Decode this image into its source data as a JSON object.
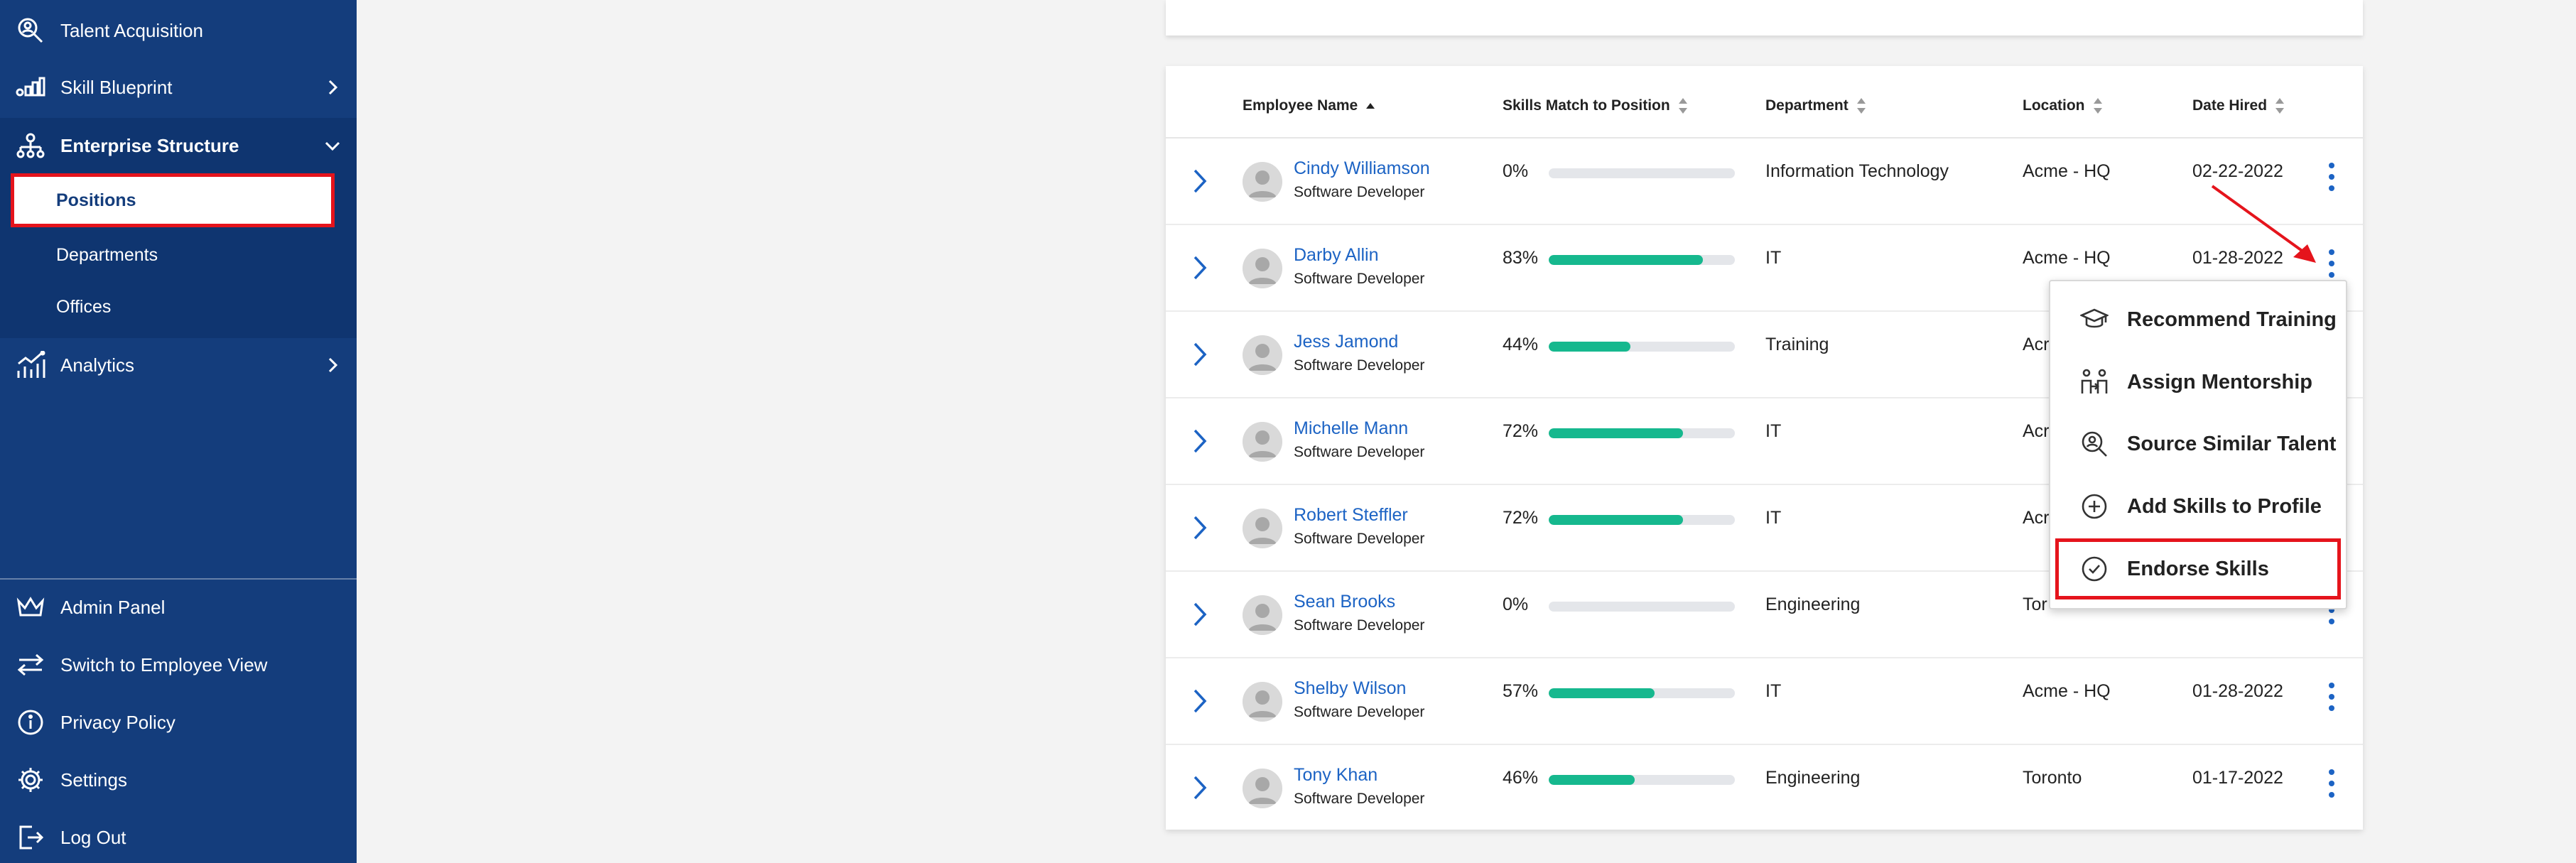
{
  "sidebar": {
    "items": [
      {
        "label": "Talent Acquisition",
        "icon": "search-person-icon"
      },
      {
        "label": "Skill Blueprint",
        "icon": "blueprint-icon"
      },
      {
        "label": "Enterprise Structure",
        "icon": "org-chart-icon"
      },
      {
        "label": "Analytics",
        "icon": "analytics-icon"
      }
    ],
    "sub_items": [
      {
        "label": "Positions"
      },
      {
        "label": "Departments"
      },
      {
        "label": "Offices"
      }
    ],
    "bottom_items": [
      {
        "label": "Admin Panel",
        "icon": "crown-icon"
      },
      {
        "label": "Switch to Employee View",
        "icon": "swap-arrows-icon"
      },
      {
        "label": "Privacy Policy",
        "icon": "info-icon"
      },
      {
        "label": "Settings",
        "icon": "gear-icon"
      },
      {
        "label": "Log Out",
        "icon": "logout-icon"
      }
    ]
  },
  "table": {
    "headers": {
      "name": "Employee Name",
      "skills": "Skills Match to Position",
      "department": "Department",
      "location": "Location",
      "date": "Date Hired"
    },
    "rows": [
      {
        "name": "Cindy Williamson",
        "role": "Software Developer",
        "pct_label": "0%",
        "match": 0,
        "department": "Information Technology",
        "location": "Acme - HQ",
        "date": "02-22-2022"
      },
      {
        "name": "Darby Allin",
        "role": "Software Developer",
        "pct_label": "83%",
        "match": 83,
        "department": "IT",
        "location": "Acme - HQ",
        "date": "01-28-2022"
      },
      {
        "name": "Jess Jamond",
        "role": "Software Developer",
        "pct_label": "44%",
        "match": 44,
        "department": "Training",
        "location": "Acr",
        "date": ""
      },
      {
        "name": "Michelle Mann",
        "role": "Software Developer",
        "pct_label": "72%",
        "match": 72,
        "department": "IT",
        "location": "Acr",
        "date": ""
      },
      {
        "name": "Robert Steffler",
        "role": "Software Developer",
        "pct_label": "72%",
        "match": 72,
        "department": "IT",
        "location": "Acr",
        "date": ""
      },
      {
        "name": "Sean Brooks",
        "role": "Software Developer",
        "pct_label": "0%",
        "match": 0,
        "department": "Engineering",
        "location": "Tor",
        "date": ""
      },
      {
        "name": "Shelby Wilson",
        "role": "Software Developer",
        "pct_label": "57%",
        "match": 57,
        "department": "IT",
        "location": "Acme - HQ",
        "date": "01-28-2022"
      },
      {
        "name": "Tony Khan",
        "role": "Software Developer",
        "pct_label": "46%",
        "match": 46,
        "department": "Engineering",
        "location": "Toronto",
        "date": "01-17-2022"
      }
    ]
  },
  "menu": {
    "items": [
      {
        "label": "Recommend Training",
        "icon": "graduation-cap-icon"
      },
      {
        "label": "Assign Mentorship",
        "icon": "mentorship-icon"
      },
      {
        "label": "Source Similar Talent",
        "icon": "search-person-icon"
      },
      {
        "label": "Add Skills to Profile",
        "icon": "plus-circle-icon"
      },
      {
        "label": "Endorse Skills",
        "icon": "check-circle-icon"
      }
    ]
  },
  "colors": {
    "sidebar": "#143d7c",
    "accent_link": "#1c63c4",
    "progress": "#16b88e",
    "annotation": "#e5141c"
  }
}
